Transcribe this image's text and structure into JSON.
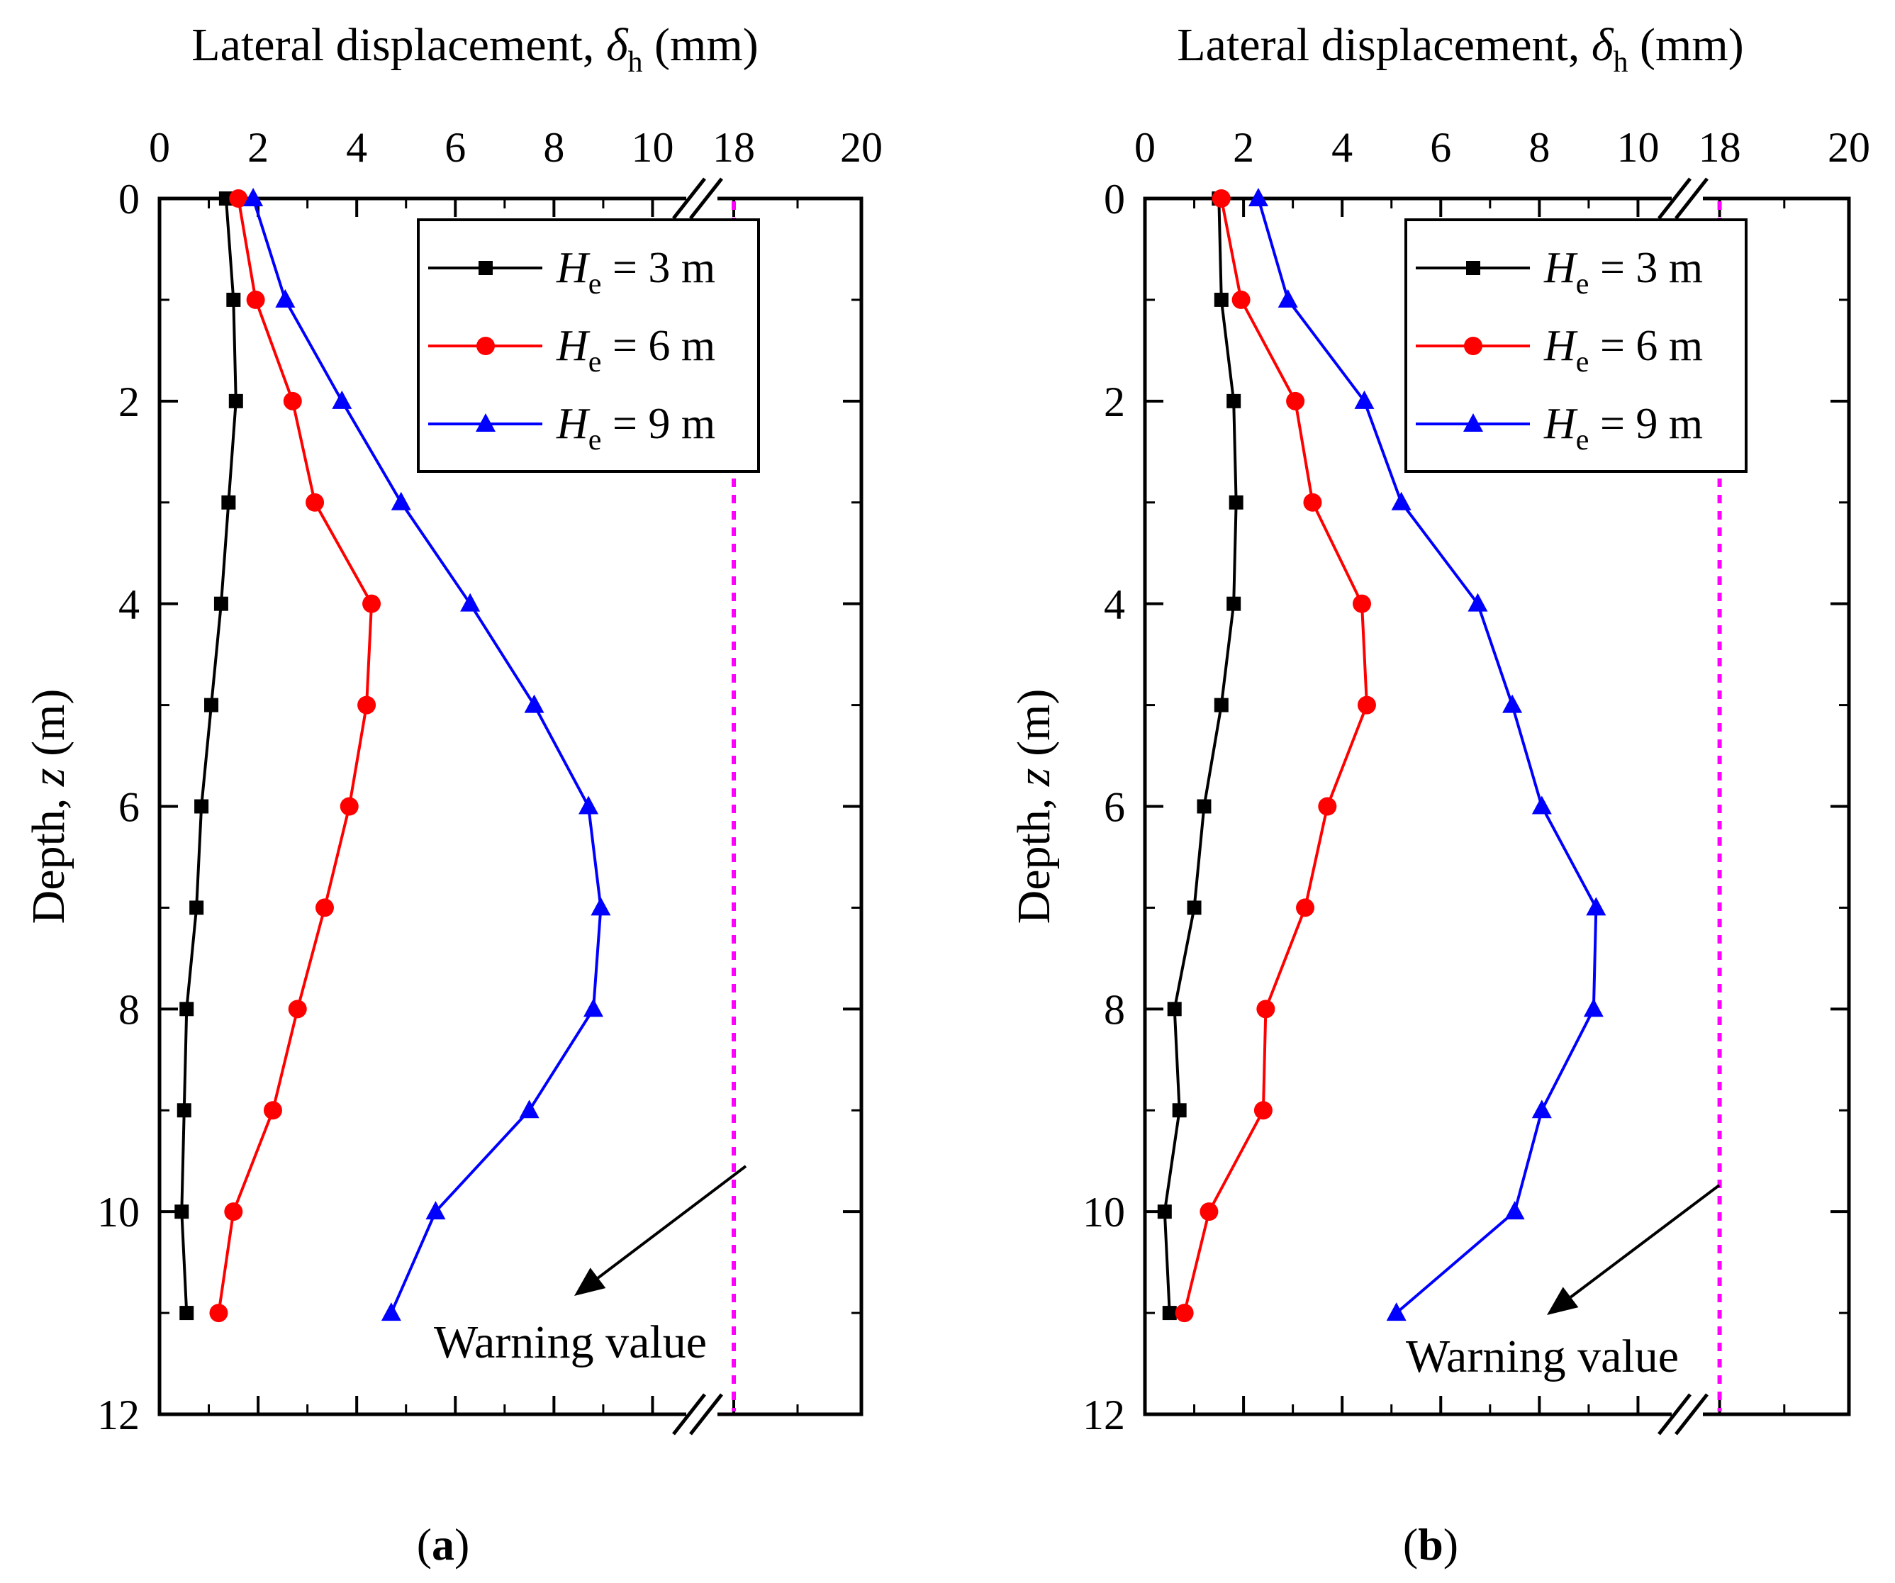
{
  "chart_data": [
    {
      "panel_label": "(a)",
      "panel_letter": "a",
      "type": "line",
      "orientation": "depth-profile",
      "x_axis": {
        "label_main": "Lateral displacement, ",
        "label_symbol": "δ",
        "label_subscript": "h",
        "label_unit": " (mm)",
        "position": "top",
        "broken": true,
        "segments": [
          [
            0,
            11
          ],
          [
            17.5,
            20
          ]
        ],
        "ticks": [
          0,
          2,
          4,
          6,
          8,
          10,
          18,
          20
        ],
        "tick_labels": [
          "0",
          "2",
          "4",
          "6",
          "8",
          "10",
          "18",
          "20"
        ]
      },
      "y_axis": {
        "label_main": "Depth, ",
        "label_symbol": "z",
        "label_unit": "  (m)",
        "range": [
          0,
          12
        ],
        "inverted": true,
        "ticks": [
          0,
          2,
          4,
          6,
          8,
          10,
          12
        ],
        "tick_labels": [
          "0",
          "2",
          "4",
          "6",
          "8",
          "10",
          "12"
        ]
      },
      "series": [
        {
          "name": "He = 3 m",
          "label_symbol": "H",
          "label_subscript": "e",
          "label_rest": " = 3 m",
          "color": "#000000",
          "marker": "square",
          "x": [
            1.35,
            1.5,
            1.55,
            1.4,
            1.25,
            1.05,
            0.85,
            0.75,
            0.55,
            0.5,
            0.45,
            0.55
          ],
          "z": [
            0,
            1,
            2,
            3,
            4,
            5,
            6,
            7,
            8,
            9,
            10,
            11
          ]
        },
        {
          "name": "He = 6 m",
          "label_symbol": "H",
          "label_subscript": "e",
          "label_rest": " = 6 m",
          "color": "#ff0000",
          "marker": "circle",
          "x": [
            1.6,
            1.95,
            2.7,
            3.15,
            4.3,
            4.2,
            3.85,
            3.35,
            2.8,
            2.3,
            1.5,
            1.2
          ],
          "z": [
            0,
            1,
            2,
            3,
            4,
            5,
            6,
            7,
            8,
            9,
            10,
            11
          ]
        },
        {
          "name": "He = 9 m",
          "label_symbol": "H",
          "label_subscript": "e",
          "label_rest": " = 9 m",
          "color": "#0000ff",
          "marker": "triangle",
          "x": [
            1.9,
            2.55,
            3.7,
            4.9,
            6.3,
            7.6,
            8.7,
            8.95,
            8.8,
            7.5,
            5.6,
            4.7
          ],
          "z": [
            0,
            1,
            2,
            3,
            4,
            5,
            6,
            7,
            8,
            9,
            10,
            11
          ]
        }
      ],
      "reference_line": {
        "x": 18,
        "color": "#ff00ff",
        "style": "dotted",
        "label": "Warning value"
      },
      "legend": {
        "position": "top-right"
      }
    },
    {
      "panel_label": "(b)",
      "panel_letter": "b",
      "type": "line",
      "orientation": "depth-profile",
      "x_axis": {
        "label_main": "Lateral displacement, ",
        "label_symbol": "δ",
        "label_subscript": "h",
        "label_unit": " (mm)",
        "position": "top",
        "broken": true,
        "segments": [
          [
            0,
            11
          ],
          [
            17.5,
            20
          ]
        ],
        "ticks": [
          0,
          2,
          4,
          6,
          8,
          10,
          18,
          20
        ],
        "tick_labels": [
          "0",
          "2",
          "4",
          "6",
          "8",
          "10",
          "18",
          "20"
        ]
      },
      "y_axis": {
        "label_main": "Depth, ",
        "label_symbol": "z",
        "label_unit": "  (m)",
        "range": [
          0,
          12
        ],
        "inverted": true,
        "ticks": [
          0,
          2,
          4,
          6,
          8,
          10,
          12
        ],
        "tick_labels": [
          "0",
          "2",
          "4",
          "6",
          "8",
          "10",
          "12"
        ]
      },
      "series": [
        {
          "name": "He = 3 m",
          "label_symbol": "H",
          "label_subscript": "e",
          "label_rest": " = 3 m",
          "color": "#000000",
          "marker": "square",
          "x": [
            1.5,
            1.55,
            1.8,
            1.85,
            1.8,
            1.55,
            1.2,
            1.0,
            0.6,
            0.7,
            0.4,
            0.5
          ],
          "z": [
            0,
            1,
            2,
            3,
            4,
            5,
            6,
            7,
            8,
            9,
            10,
            11
          ]
        },
        {
          "name": "He = 6 m",
          "label_symbol": "H",
          "label_subscript": "e",
          "label_rest": " = 6 m",
          "color": "#ff0000",
          "marker": "circle",
          "x": [
            1.55,
            1.95,
            3.05,
            3.4,
            4.4,
            4.5,
            3.7,
            3.25,
            2.45,
            2.4,
            1.3,
            0.8
          ],
          "z": [
            0,
            1,
            2,
            3,
            4,
            5,
            6,
            7,
            8,
            9,
            10,
            11
          ]
        },
        {
          "name": "He = 9 m",
          "label_symbol": "H",
          "label_subscript": "e",
          "label_rest": " = 9 m",
          "color": "#0000ff",
          "marker": "triangle",
          "x": [
            2.3,
            2.9,
            4.45,
            5.2,
            6.75,
            7.45,
            8.05,
            9.15,
            9.1,
            8.05,
            7.5,
            5.1
          ],
          "z": [
            0,
            1,
            2,
            3,
            4,
            5,
            6,
            7,
            8,
            9,
            10,
            11
          ]
        }
      ],
      "reference_line": {
        "x": 18,
        "color": "#ff00ff",
        "style": "dotted",
        "label": "Warning value"
      },
      "legend": {
        "position": "top-right"
      }
    }
  ]
}
